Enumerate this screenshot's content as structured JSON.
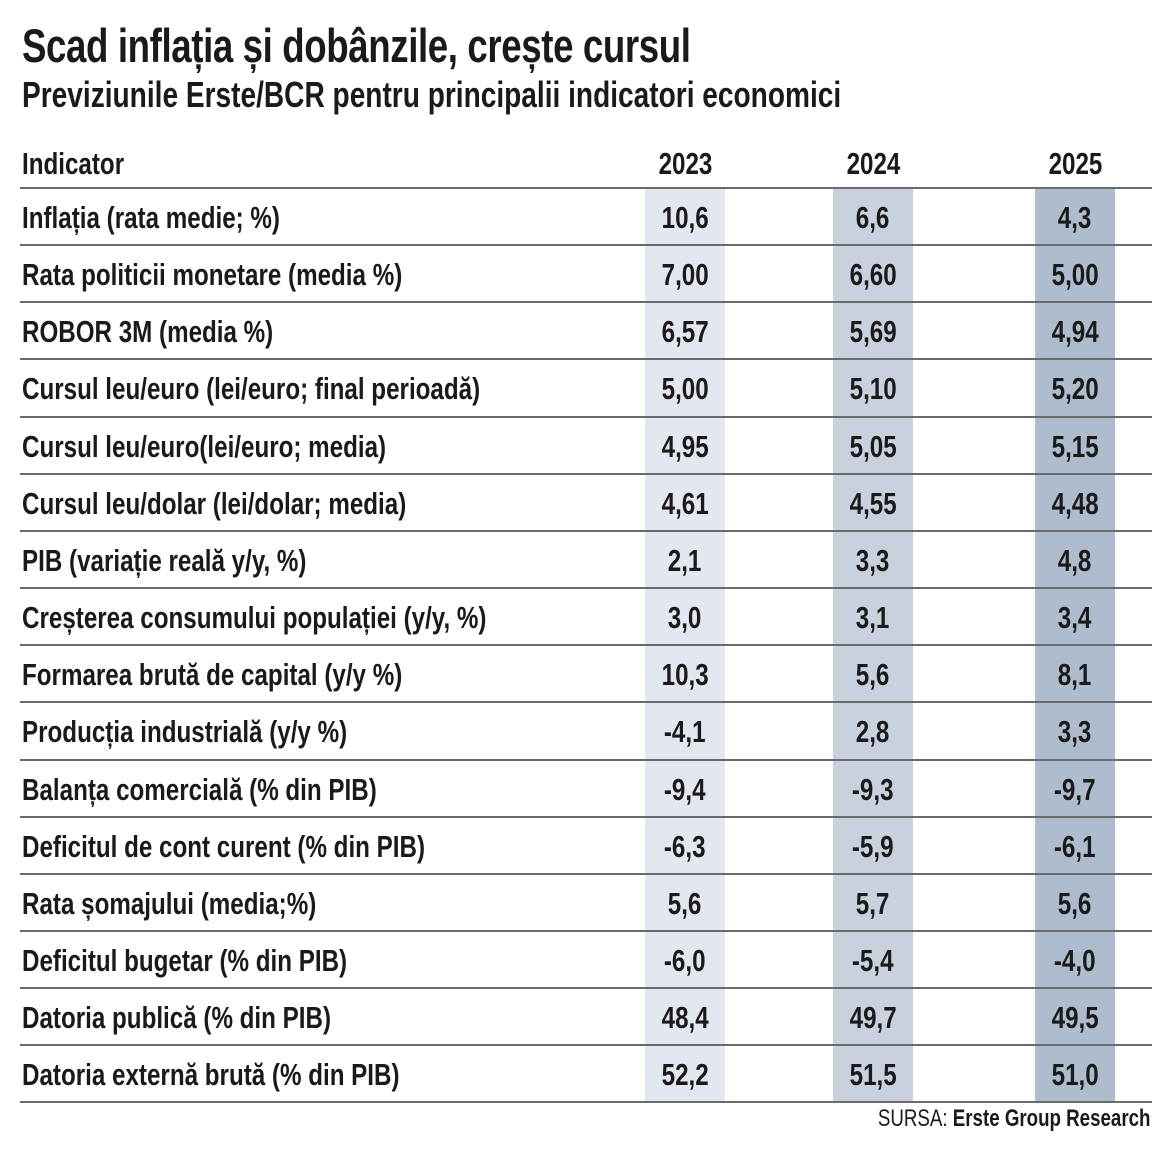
{
  "title": "Scad inflația și dobânzile, crește cursul",
  "subtitle": "Previziunile Erste/BCR pentru principalii indicatori economici",
  "source_label": "SURSA:",
  "source_name": "Erste Group Research",
  "colors": {
    "col_2023": "#e3e7ef",
    "col_2024": "#c9d1de",
    "col_2025": "#aebccd",
    "rule": "#6a6a6a"
  },
  "chart_data": {
    "type": "table",
    "columns": [
      "Indicator",
      "2023",
      "2024",
      "2025"
    ],
    "rows": [
      {
        "indicator": "Inflația (rata medie; %)",
        "values": [
          "10,6",
          "6,6",
          "4,3"
        ]
      },
      {
        "indicator": "Rata politicii monetare (media %)",
        "values": [
          "7,00",
          "6,60",
          "5,00"
        ]
      },
      {
        "indicator": "ROBOR 3M (media %)",
        "values": [
          "6,57",
          "5,69",
          "4,94"
        ]
      },
      {
        "indicator": "Cursul leu/euro (lei/euro; final perioadă)",
        "values": [
          "5,00",
          "5,10",
          "5,20"
        ]
      },
      {
        "indicator": "Cursul leu/euro(lei/euro; media)",
        "values": [
          "4,95",
          "5,05",
          "5,15"
        ]
      },
      {
        "indicator": "Cursul leu/dolar (lei/dolar; media)",
        "values": [
          "4,61",
          "4,55",
          "4,48"
        ]
      },
      {
        "indicator": "PIB (variație reală y/y, %)",
        "values": [
          "2,1",
          "3,3",
          "4,8"
        ]
      },
      {
        "indicator": "Creșterea consumului populației (y/y, %)",
        "values": [
          "3,0",
          "3,1",
          "3,4"
        ]
      },
      {
        "indicator": "Formarea brută de capital (y/y %)",
        "values": [
          "10,3",
          "5,6",
          "8,1"
        ]
      },
      {
        "indicator": "Producția industrială (y/y %)",
        "values": [
          "-4,1",
          "2,8",
          "3,3"
        ]
      },
      {
        "indicator": "Balanța comercială (% din PIB)",
        "values": [
          "-9,4",
          "-9,3",
          "-9,7"
        ]
      },
      {
        "indicator": "Deficitul de cont curent (% din PIB)",
        "values": [
          "-6,3",
          "-5,9",
          "-6,1"
        ]
      },
      {
        "indicator": "Rata șomajului (media;%)",
        "values": [
          "5,6",
          "5,7",
          "5,6"
        ]
      },
      {
        "indicator": "Deficitul bugetar (% din PIB)",
        "values": [
          "-6,0",
          "-5,4",
          "-4,0"
        ]
      },
      {
        "indicator": "Datoria publică (% din PIB)",
        "values": [
          "48,4",
          "49,7",
          "49,5"
        ]
      },
      {
        "indicator": "Datoria externă brută (% din PIB)",
        "values": [
          "52,2",
          "51,5",
          "51,0"
        ]
      }
    ]
  }
}
